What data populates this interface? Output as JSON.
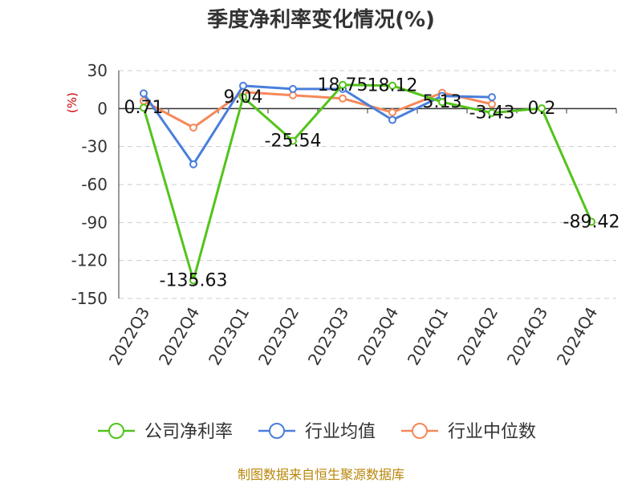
{
  "chart_data": {
    "type": "line",
    "title": "季度净利率变化情况(%)",
    "ylabel": "(%)",
    "ylim": [
      -150,
      30
    ],
    "yticks": [
      30,
      0,
      -30,
      -60,
      -90,
      -120,
      -150
    ],
    "grid": true,
    "legend_position": "bottom-center",
    "categories": [
      "2022Q3",
      "2022Q4",
      "2023Q1",
      "2023Q2",
      "2023Q3",
      "2023Q4",
      "2024Q1",
      "2024Q2",
      "2024Q3",
      "2024Q4"
    ],
    "series": [
      {
        "name": "公司净利率",
        "color": "#52c41a",
        "values": [
          0.71,
          -135.63,
          9.04,
          -25.54,
          18.75,
          18.12,
          5.13,
          -3.43,
          0.2,
          -89.42
        ],
        "labels": [
          "0.71",
          "-135.63",
          "9.04",
          "-25.54",
          "18.75",
          "18.12",
          "5.13",
          "-3.43",
          "0.2",
          "-89.42"
        ]
      },
      {
        "name": "行业均值",
        "color": "#4a7fdc",
        "values": [
          12,
          -44,
          18,
          15.5,
          15.5,
          -9,
          10,
          9,
          null,
          null
        ]
      },
      {
        "name": "行业中位数",
        "color": "#f5895a",
        "values": [
          6,
          -15,
          13,
          10.5,
          8,
          -3,
          12.5,
          3.5,
          null,
          null
        ]
      }
    ]
  },
  "footer": {
    "source": "制图数据来自恒生聚源数据库"
  }
}
